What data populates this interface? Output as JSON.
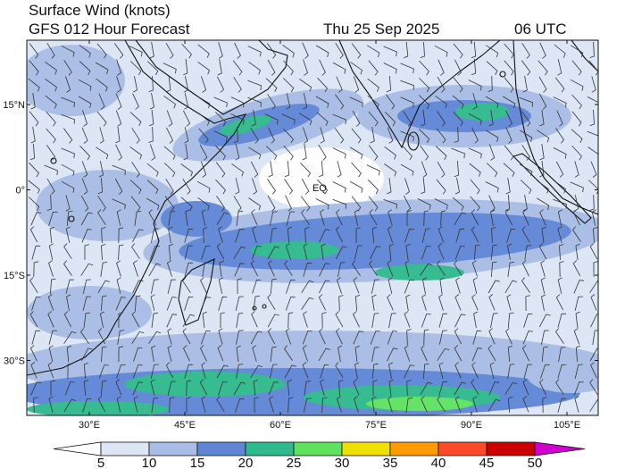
{
  "header": {
    "title": "Surface Wind (knots)",
    "subtitle": "GFS 012 Hour Forecast",
    "date": "Thu 25 Sep 2025",
    "time": "06 UTC"
  },
  "map": {
    "latitude_labels": [
      "15°N",
      "0°",
      "15°S",
      "30°S"
    ],
    "longitude_labels": [
      "30°E",
      "45°E",
      "60°E",
      "75°E",
      "90°E",
      "105°E"
    ],
    "annotation": "EQ"
  },
  "colorbar": {
    "levels": [
      5,
      10,
      15,
      20,
      25,
      30,
      35,
      40,
      45,
      50
    ],
    "colors": [
      "#ffffff",
      "#dde6f4",
      "#a9bde6",
      "#5f86d6",
      "#2fb98c",
      "#5fe35f",
      "#f0e000",
      "#ff9a00",
      "#ff4a2a",
      "#cc0000",
      "#d000d0"
    ]
  }
}
